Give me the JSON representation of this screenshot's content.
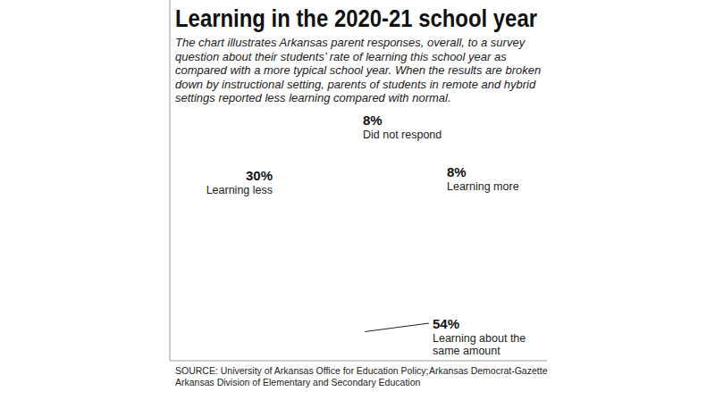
{
  "chart_data": {
    "type": "pie",
    "title": "Learning in the 2020-21 school year",
    "subtitle": "The chart illustrates Arkansas parent responses, overall, to a survey question about their students’ rate of learning this school year as compared with a more typical school year. When the results are broken down by instructional setting, parents of students in remote and hybrid settings reported less learning compared with normal.",
    "categories": [
      "Did not respond",
      "Learning more",
      "Learning about the same amount",
      "Learning less"
    ],
    "values": [
      8,
      8,
      54,
      30
    ],
    "value_labels": [
      "8%",
      "8%",
      "54%",
      "30%"
    ],
    "colors": [
      "#b3b3b3",
      "#1d5a82",
      "#3a8ab0",
      "#a9d4e0"
    ],
    "data_labels": true,
    "source": "SOURCE: University of Arkansas Office for Education Policy; Arkansas Division of Elementary and Secondary Education",
    "credit": "Arkansas Democrat-Gazette"
  }
}
